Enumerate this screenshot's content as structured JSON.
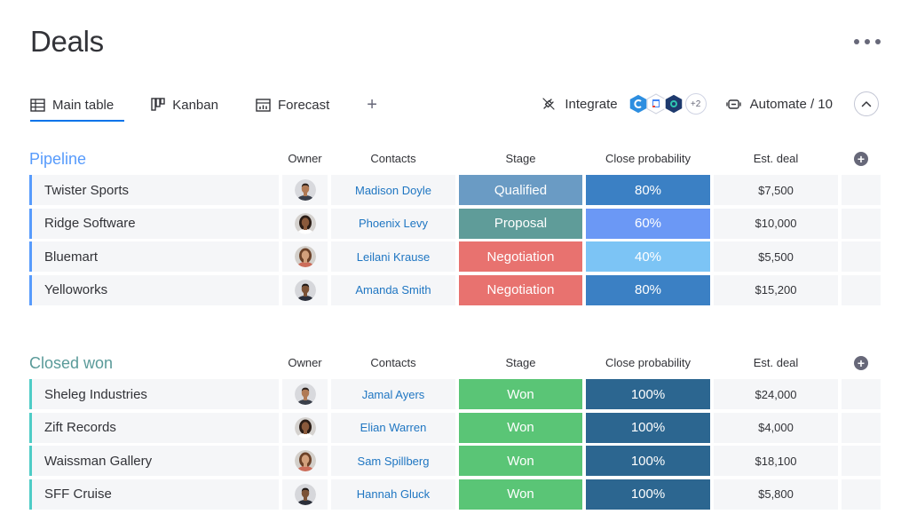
{
  "page": {
    "title": "Deals"
  },
  "tabs": [
    {
      "label": "Main table",
      "icon": "table-icon",
      "active": true
    },
    {
      "label": "Kanban",
      "icon": "kanban-icon",
      "active": false
    },
    {
      "label": "Forecast",
      "icon": "chart-icon",
      "active": false
    }
  ],
  "add_tab_label": "+",
  "tools": {
    "integrate_label": "Integrate",
    "apps_more": "+2",
    "automate_label": "Automate / 10"
  },
  "columns": {
    "owner": "Owner",
    "contacts": "Contacts",
    "stage": "Stage",
    "probability": "Close probability",
    "deal": "Est. deal"
  },
  "colors": {
    "pipeline": "#579bfc",
    "closed": "#4eccc6",
    "qualified": "#6a9bc4",
    "proposal": "#5f9c99",
    "negotiation": "#e8726f",
    "won": "#5ac576",
    "prob_80": "#3b80c4",
    "prob_60": "#6b98f5",
    "prob_40": "#7cc4f5",
    "prob_100": "#2c6690"
  },
  "groups": [
    {
      "title": "Pipeline",
      "color": "#579bfc",
      "title_color": "#579bfc",
      "rows": [
        {
          "name": "Twister Sports",
          "contact": "Madison Doyle",
          "stage": "Qualified",
          "stage_color": "#6a9bc4",
          "probability": "80%",
          "prob_color": "#3b80c4",
          "deal": "$7,500",
          "avatar": "man-1"
        },
        {
          "name": "Ridge Software",
          "contact": "Phoenix Levy",
          "stage": "Proposal",
          "stage_color": "#5f9c99",
          "probability": "60%",
          "prob_color": "#6b98f5",
          "deal": "$10,000",
          "avatar": "woman-1"
        },
        {
          "name": "Bluemart",
          "contact": "Leilani Krause",
          "stage": "Negotiation",
          "stage_color": "#e8726f",
          "probability": "40%",
          "prob_color": "#7cc4f5",
          "deal": "$5,500",
          "avatar": "woman-2"
        },
        {
          "name": "Yelloworks",
          "contact": "Amanda Smith",
          "stage": "Negotiation",
          "stage_color": "#e8726f",
          "probability": "80%",
          "prob_color": "#3b80c4",
          "deal": "$15,200",
          "avatar": "man-2"
        }
      ]
    },
    {
      "title": "Closed won",
      "color": "#4eccc6",
      "title_color": "#5a9a99",
      "rows": [
        {
          "name": "Sheleg Industries",
          "contact": "Jamal Ayers",
          "stage": "Won",
          "stage_color": "#5ac576",
          "probability": "100%",
          "prob_color": "#2c6690",
          "deal": "$24,000",
          "avatar": "man-1"
        },
        {
          "name": "Zift Records",
          "contact": "Elian Warren",
          "stage": "Won",
          "stage_color": "#5ac576",
          "probability": "100%",
          "prob_color": "#2c6690",
          "deal": "$4,000",
          "avatar": "woman-1"
        },
        {
          "name": "Waissman Gallery",
          "contact": "Sam Spillberg",
          "stage": "Won",
          "stage_color": "#5ac576",
          "probability": "100%",
          "prob_color": "#2c6690",
          "deal": "$18,100",
          "avatar": "woman-2"
        },
        {
          "name": "SFF Cruise",
          "contact": "Hannah Gluck",
          "stage": "Won",
          "stage_color": "#5ac576",
          "probability": "100%",
          "prob_color": "#2c6690",
          "deal": "$5,800",
          "avatar": "man-2"
        }
      ]
    }
  ]
}
